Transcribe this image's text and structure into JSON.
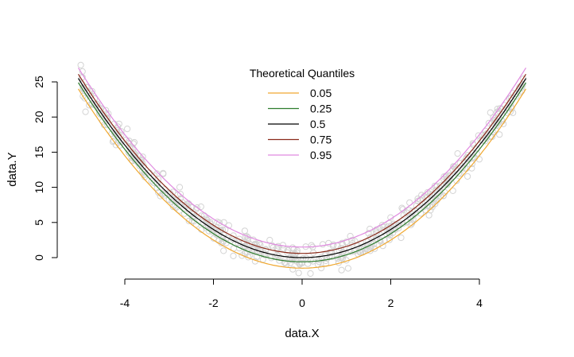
{
  "chart_data": {
    "type": "scatter",
    "xlabel": "data.X",
    "ylabel": "data.Y",
    "xlim": [
      -5,
      5
    ],
    "ylim": [
      0,
      25
    ],
    "x_ticks": [
      -4,
      -2,
      0,
      2,
      4
    ],
    "y_ticks": [
      0,
      5,
      10,
      15,
      20,
      25
    ],
    "legend": {
      "title": "Theoretical Quantiles",
      "placement": "top-center",
      "entries": [
        "0.05",
        "0.25",
        "0.5",
        "0.75",
        "0.95"
      ]
    },
    "scatter_color": "#d3d3d3",
    "points_model": {
      "form": "y = x^2 + noise",
      "x_range": [
        -5,
        5
      ],
      "noise_sd": 0.9
    },
    "series": [
      {
        "name": "0.05",
        "color": "#f0a830",
        "curve": {
          "a": 1,
          "b": -1.5
        }
      },
      {
        "name": "0.25",
        "color": "#2e7d2e",
        "curve": {
          "a": 1,
          "b": -0.6
        }
      },
      {
        "name": "0.5",
        "color": "#000000",
        "curve": {
          "a": 1,
          "b": 0.0
        }
      },
      {
        "name": "0.75",
        "color": "#8b2a1a",
        "curve": {
          "a": 1,
          "b": 0.6
        }
      },
      {
        "name": "0.95",
        "color": "#e08ae0",
        "curve": {
          "a": 1,
          "b": 1.5
        }
      }
    ]
  }
}
